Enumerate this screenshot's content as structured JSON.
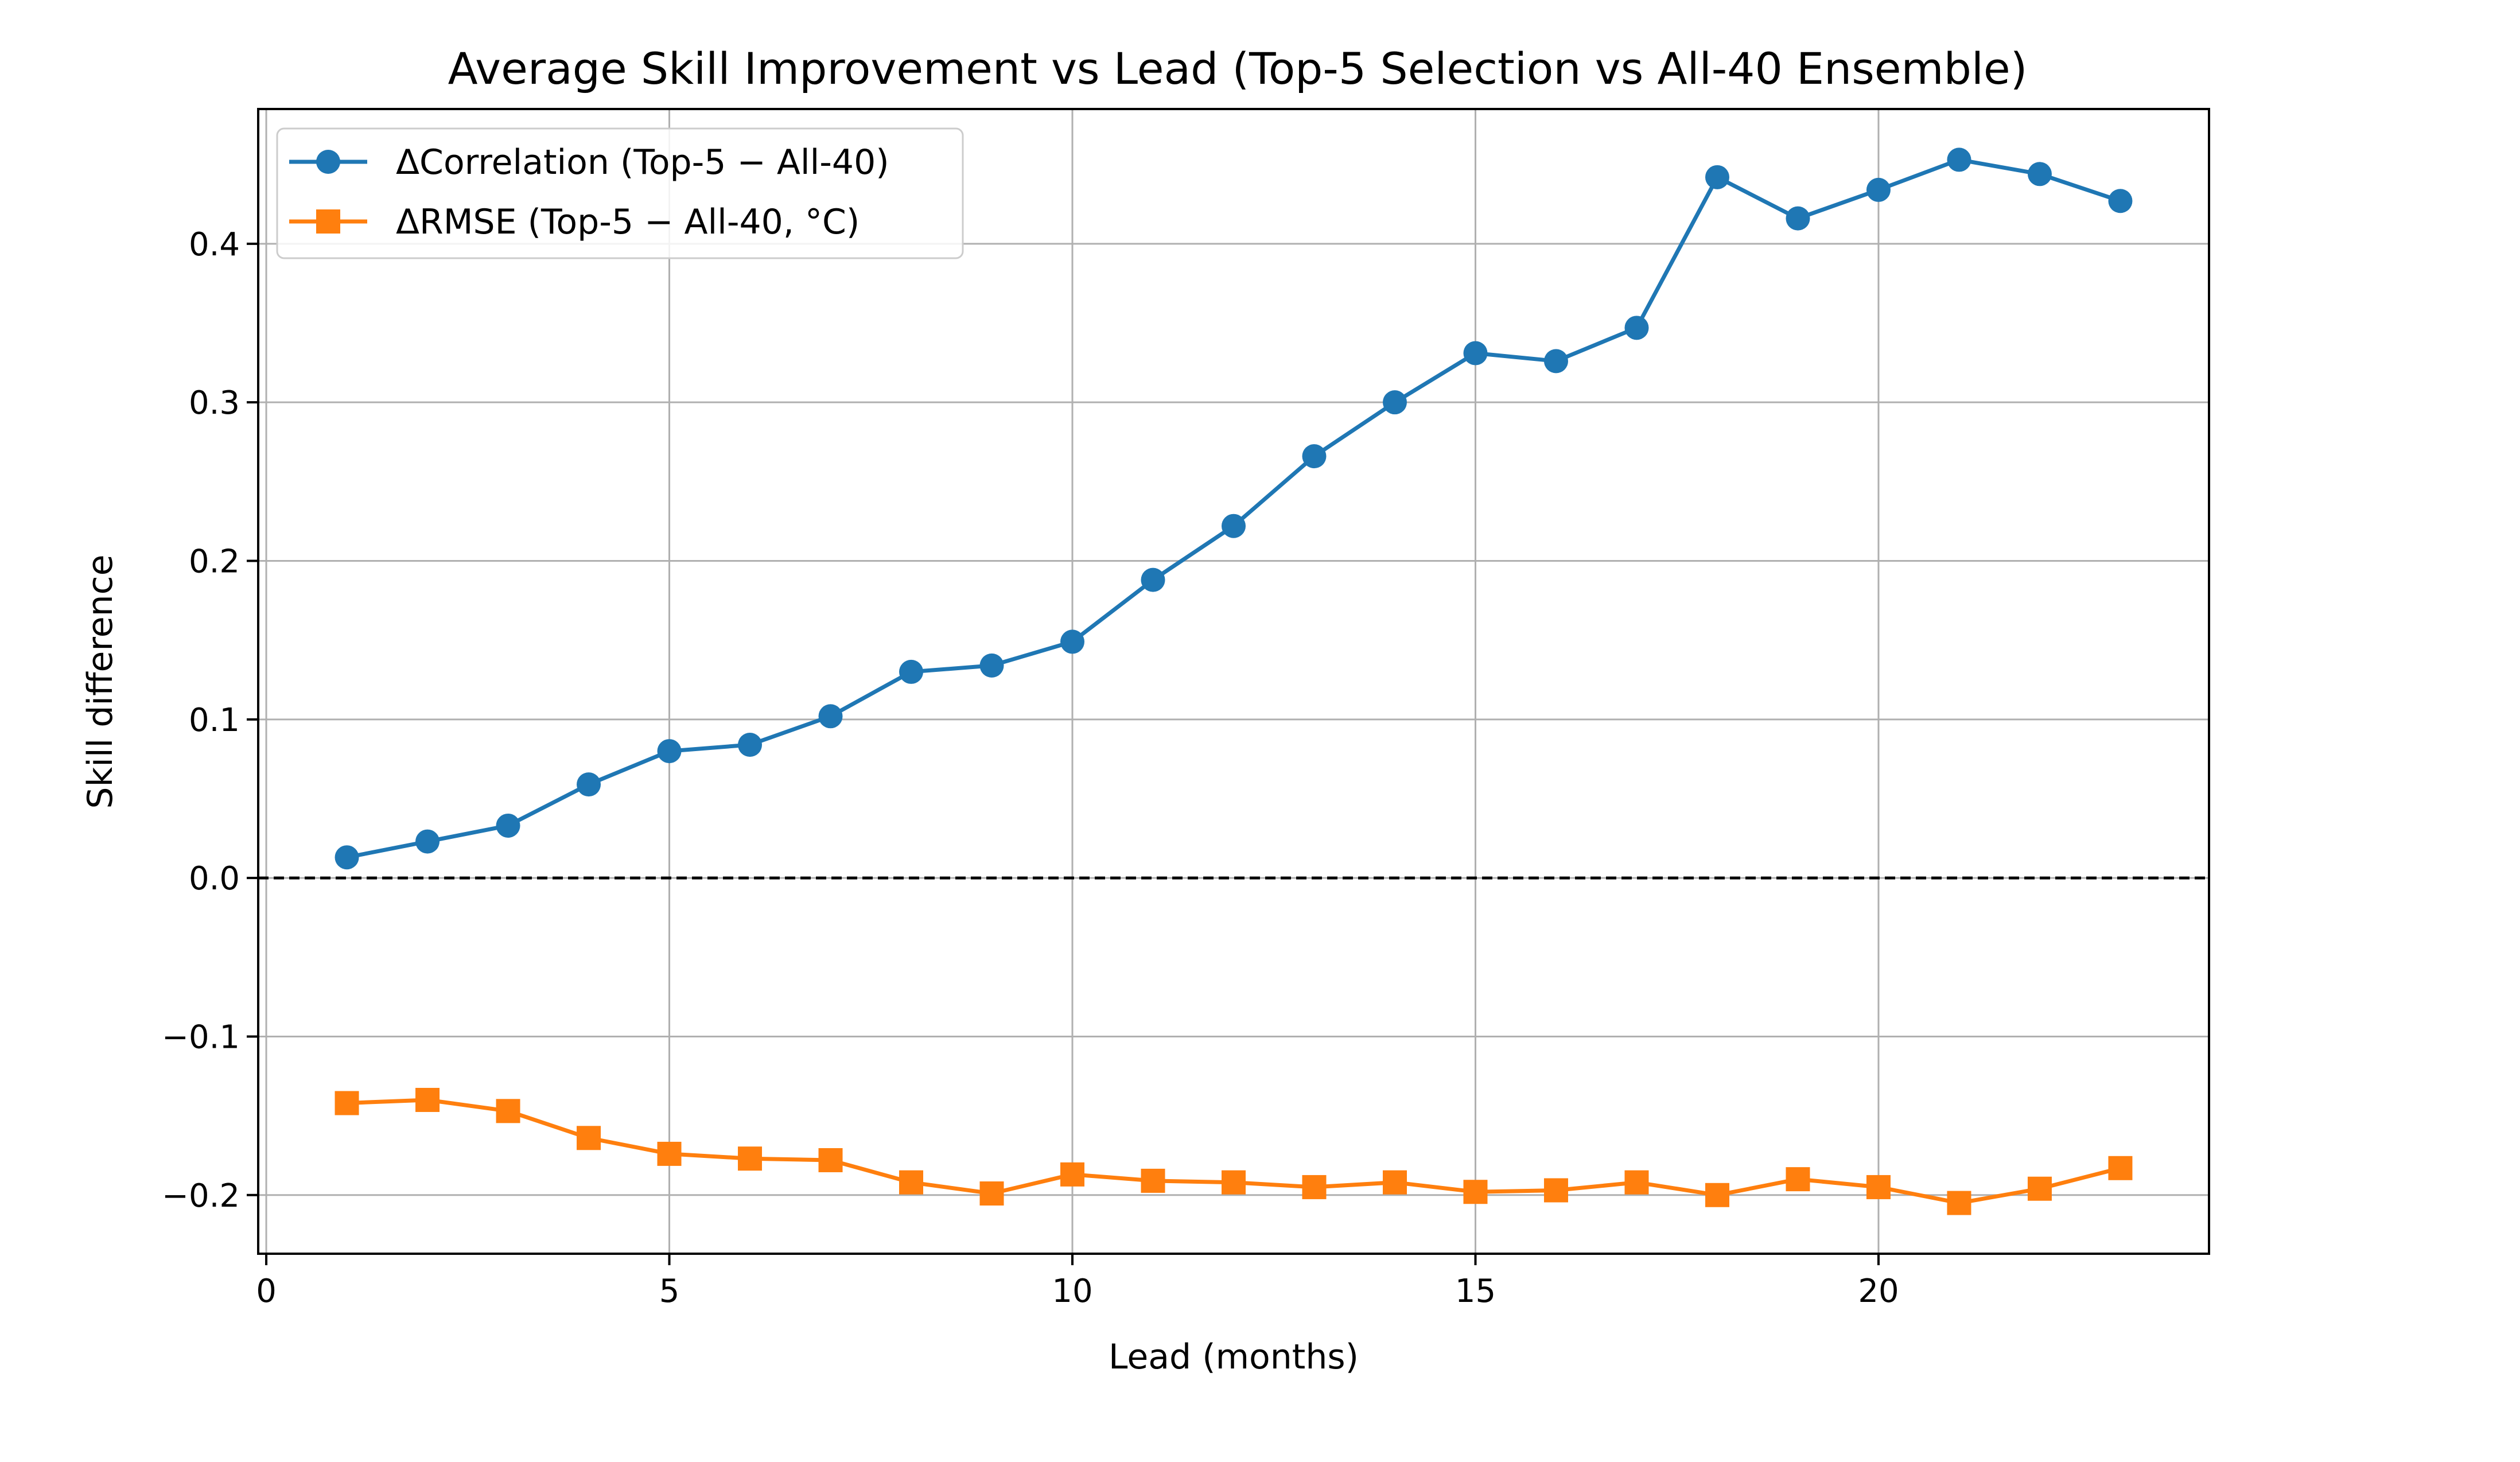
{
  "chart_data": {
    "type": "line",
    "title": "Average Skill Improvement vs Lead (Top-5 Selection vs All-40 Ensemble)",
    "xlabel": "Lead (months)",
    "ylabel": "Skill difference",
    "xlim": [
      -0.1,
      24.1
    ],
    "ylim": [
      -0.237,
      0.485
    ],
    "xticks": [
      0,
      5,
      10,
      15,
      20
    ],
    "xtick_labels": [
      "0",
      "5",
      "10",
      "15",
      "20"
    ],
    "yticks": [
      -0.2,
      -0.1,
      0.0,
      0.1,
      0.2,
      0.3,
      0.4
    ],
    "ytick_labels": [
      "−0.2",
      "−0.1",
      "0.0",
      "0.1",
      "0.2",
      "0.3",
      "0.4"
    ],
    "grid": true,
    "legend_position": "top-left",
    "reference_line": {
      "y": 0.0,
      "style": "dashed",
      "color": "#000000"
    },
    "x": [
      1,
      2,
      3,
      4,
      5,
      6,
      7,
      8,
      9,
      10,
      11,
      12,
      13,
      14,
      15,
      16,
      17,
      18,
      19,
      20,
      21,
      22,
      23
    ],
    "series": [
      {
        "name": "ΔCorrelation (Top-5 − All-40)",
        "color": "#1f77b4",
        "marker": "circle",
        "values": [
          0.013,
          0.023,
          0.033,
          0.059,
          0.08,
          0.084,
          0.102,
          0.13,
          0.134,
          0.149,
          0.188,
          0.222,
          0.266,
          0.3,
          0.331,
          0.326,
          0.347,
          0.442,
          0.416,
          0.434,
          0.453,
          0.444,
          0.427
        ]
      },
      {
        "name": "ΔRMSE (Top-5 − All-40, °C)",
        "color": "#ff7f0e",
        "marker": "square",
        "values": [
          -0.142,
          -0.14,
          -0.147,
          -0.164,
          -0.174,
          -0.177,
          -0.178,
          -0.192,
          -0.199,
          -0.187,
          -0.191,
          -0.192,
          -0.195,
          -0.192,
          -0.198,
          -0.197,
          -0.192,
          -0.2,
          -0.19,
          -0.195,
          -0.205,
          -0.196,
          -0.183
        ]
      }
    ]
  }
}
